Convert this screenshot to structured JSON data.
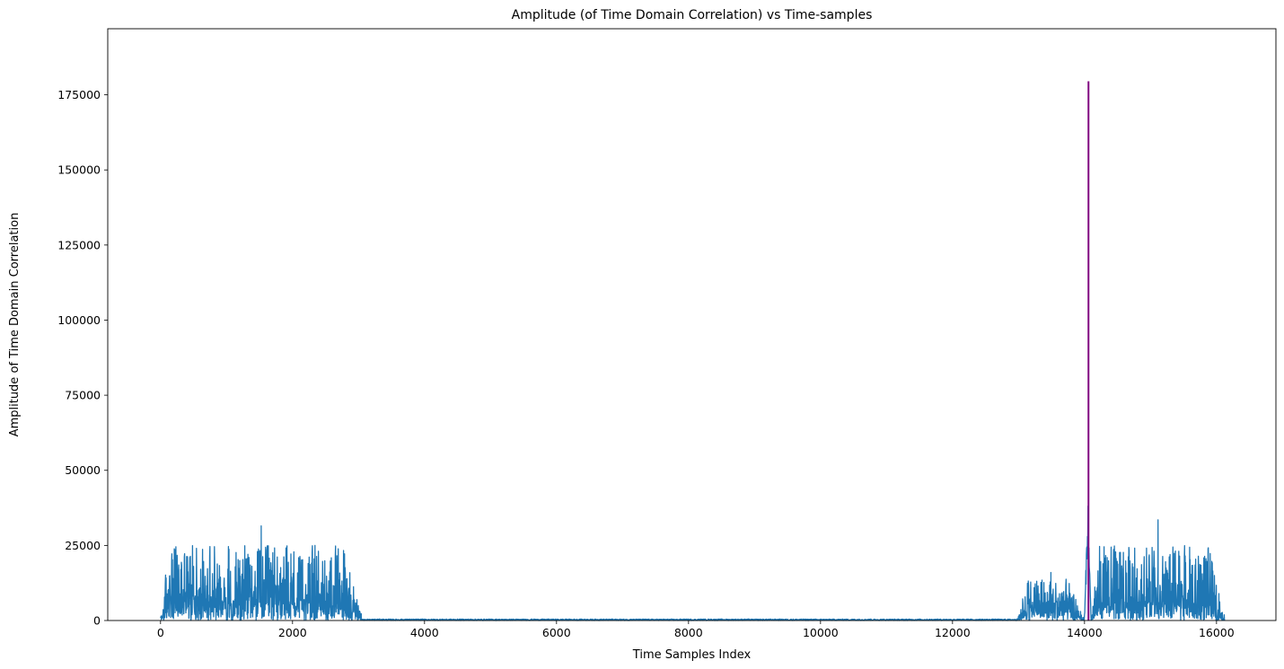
{
  "chart_data": {
    "type": "line",
    "title": "Amplitude (of Time Domain Correlation) vs Time-samples",
    "xlabel": "Time Samples Index",
    "ylabel": "Amplitude of Time Domain Correlation",
    "xlim": [
      -800,
      16900
    ],
    "ylim": [
      0,
      197000
    ],
    "xticks": [
      0,
      2000,
      4000,
      6000,
      8000,
      10000,
      12000,
      14000,
      16000
    ],
    "yticks": [
      0,
      25000,
      50000,
      75000,
      100000,
      125000,
      150000,
      175000
    ],
    "grid": false,
    "legend": "none",
    "series": [
      {
        "color": "#1f77b4",
        "sample_count": 16128,
        "segments": [
          {
            "x_start": 0,
            "x_end": 3050,
            "level": "active",
            "typical_range": [
              0,
              25000
            ],
            "peak": 31500
          },
          {
            "x_start": 3050,
            "x_end": 12980,
            "level": "noise-floor",
            "typical_range": [
              0,
              500
            ]
          },
          {
            "x_start": 12980,
            "x_end": 14000,
            "level": "active",
            "typical_range": [
              0,
              14000
            ],
            "peak": 16000
          },
          {
            "x_start": 14000,
            "x_end": 14100,
            "level": "correlation-peak",
            "peak": 42000
          },
          {
            "x_start": 14100,
            "x_end": 16128,
            "level": "active",
            "typical_range": [
              0,
              25000
            ],
            "peak": 33500
          }
        ]
      },
      {
        "color": "#800080",
        "x": [
          14060,
          14060
        ],
        "y": [
          0,
          179500
        ]
      }
    ]
  }
}
